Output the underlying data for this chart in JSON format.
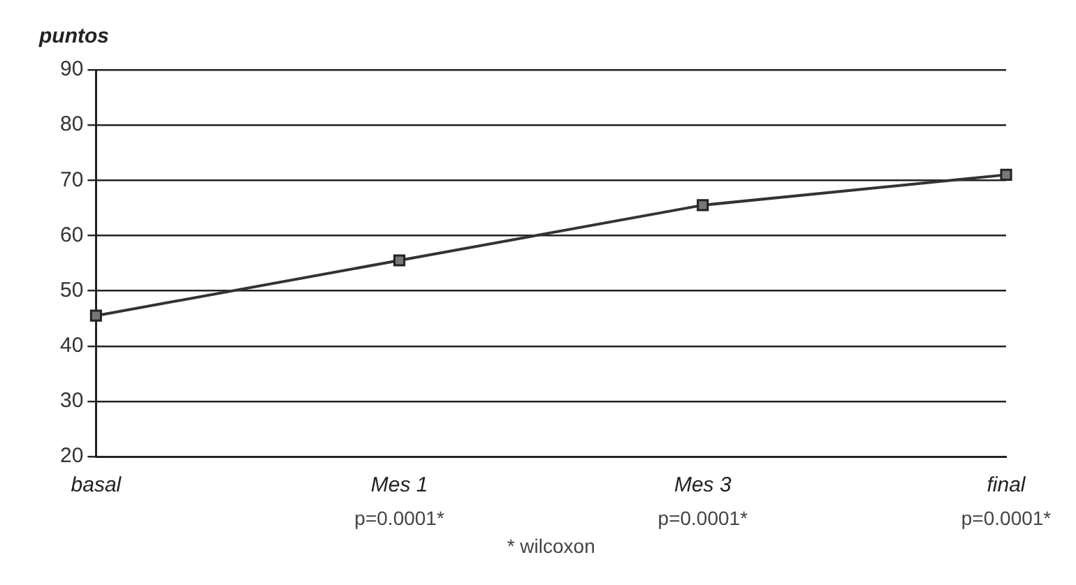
{
  "chart_data": {
    "type": "line",
    "ylabel": "puntos",
    "categories": [
      "basal",
      "Mes 1",
      "Mes 3",
      "final"
    ],
    "series": [
      {
        "color": "#333333",
        "values": [
          45.5,
          55.5,
          65.5,
          71
        ]
      }
    ],
    "ylim": [
      20,
      90
    ],
    "yticks": [
      20,
      30,
      40,
      50,
      60,
      70,
      80,
      90
    ],
    "grid": "y",
    "legend": false,
    "marker": "square",
    "line_style": "solid",
    "annotations": [
      "p=0.0001*",
      "p=0.0001*",
      "p=0.0001*",
      "* wilcoxon"
    ]
  }
}
